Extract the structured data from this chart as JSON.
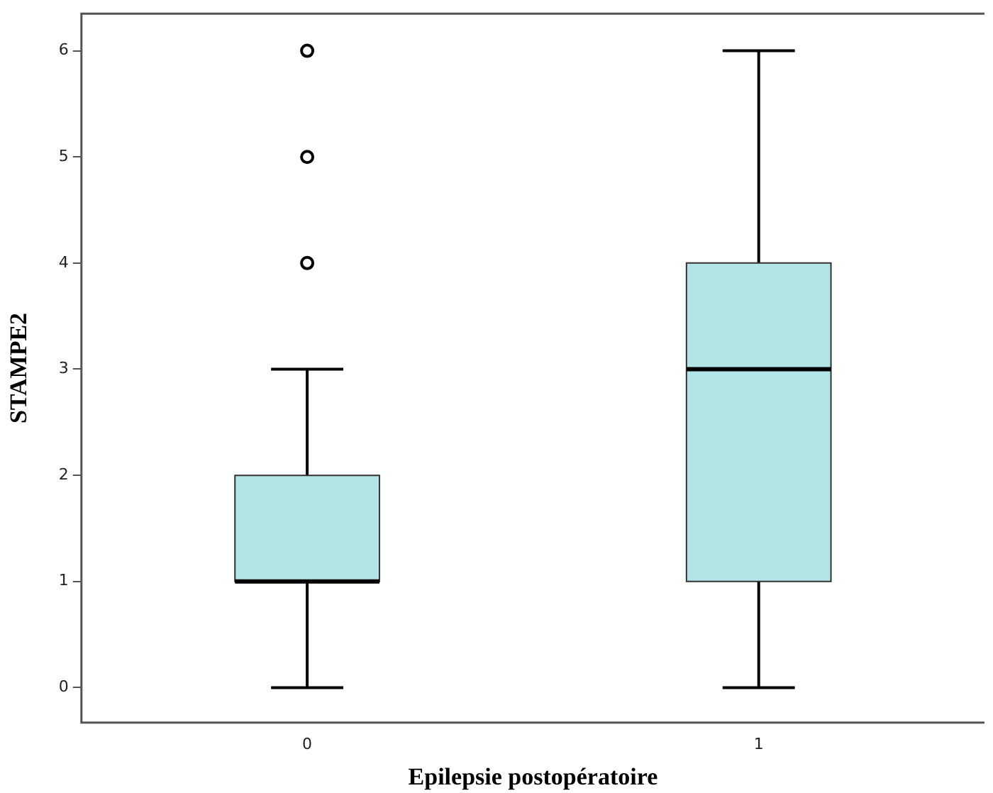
{
  "chart_data": {
    "type": "box",
    "xlabel": "Epilepsie postopératoire",
    "ylabel": "STAMPE2",
    "categories": [
      "0",
      "1"
    ],
    "color": "#b3e5e6",
    "boxes": [
      {
        "low": 0,
        "q1": 1,
        "median": 1,
        "q3": 2,
        "high": 3,
        "outliers": [
          4,
          5,
          6
        ]
      },
      {
        "low": 0,
        "q1": 1,
        "median": 3,
        "q3": 4,
        "high": 6
      }
    ],
    "ylim": [
      -0.33,
      6.35
    ],
    "yticks": [
      0,
      1,
      2,
      3,
      4,
      5,
      6
    ],
    "grid": false,
    "legend": false
  }
}
